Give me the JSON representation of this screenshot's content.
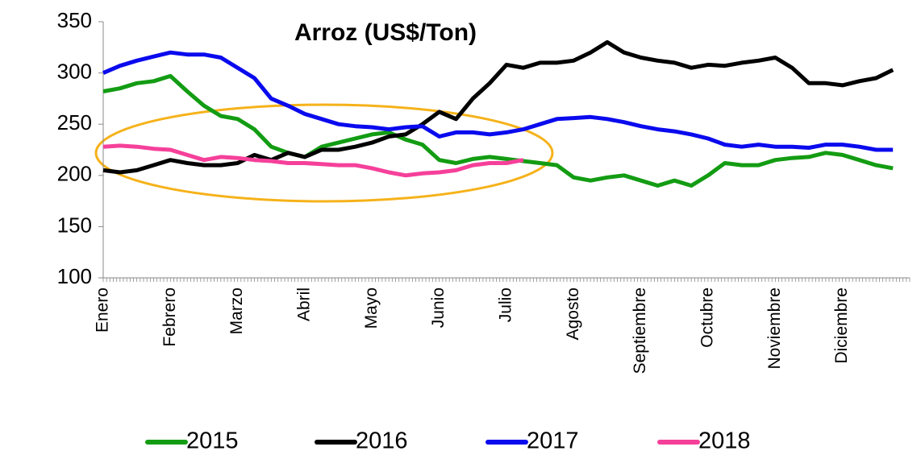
{
  "chart_data": {
    "type": "line",
    "title": "Arroz (US$/Ton)",
    "categories": [
      "Enero",
      null,
      null,
      null,
      "Febrero",
      null,
      null,
      null,
      "Marzo",
      null,
      null,
      null,
      "Abril",
      null,
      null,
      null,
      "Mayo",
      null,
      null,
      null,
      "Junio",
      null,
      null,
      null,
      "Julio",
      null,
      null,
      null,
      "Agosto",
      null,
      null,
      null,
      "Septiembre",
      null,
      null,
      null,
      "Octubre",
      null,
      null,
      null,
      "Noviembre",
      null,
      null,
      null,
      "Diciembre",
      null,
      null,
      null
    ],
    "series": [
      {
        "name": "2015",
        "color": "#139c13",
        "values": [
          282,
          285,
          290,
          292,
          297,
          282,
          268,
          258,
          255,
          245,
          228,
          222,
          218,
          228,
          232,
          236,
          240,
          242,
          235,
          230,
          215,
          212,
          216,
          218,
          216,
          214,
          212,
          210,
          198,
          195,
          198,
          200,
          195,
          190,
          195,
          190,
          200,
          212,
          210,
          210,
          215,
          217,
          218,
          222,
          220,
          215,
          210,
          207
        ]
      },
      {
        "name": "2016",
        "color": "#000000",
        "values": [
          205,
          203,
          205,
          210,
          215,
          212,
          210,
          210,
          212,
          220,
          215,
          222,
          218,
          225,
          225,
          228,
          232,
          238,
          240,
          250,
          262,
          255,
          275,
          290,
          308,
          305,
          310,
          310,
          312,
          320,
          330,
          320,
          315,
          312,
          310,
          305,
          308,
          307,
          310,
          312,
          315,
          305,
          290,
          290,
          288,
          292,
          295,
          303
        ]
      },
      {
        "name": "2017",
        "color": "#0a0aee",
        "values": [
          300,
          307,
          312,
          316,
          320,
          318,
          318,
          315,
          305,
          295,
          275,
          268,
          260,
          255,
          250,
          248,
          247,
          245,
          247,
          248,
          238,
          242,
          242,
          240,
          242,
          245,
          250,
          255,
          256,
          257,
          255,
          252,
          248,
          245,
          243,
          240,
          236,
          230,
          228,
          230,
          228,
          228,
          227,
          230,
          230,
          228,
          225,
          225
        ]
      },
      {
        "name": "2018",
        "color": "#f5409a",
        "values": [
          228,
          229,
          228,
          226,
          225,
          220,
          215,
          218,
          217,
          215,
          214,
          212,
          212,
          211,
          210,
          210,
          207,
          203,
          200,
          202,
          203,
          205,
          210,
          212,
          212,
          215,
          null,
          null,
          null,
          null,
          null,
          null,
          null,
          null,
          null,
          null,
          null,
          null,
          null,
          null,
          null,
          null,
          null,
          null,
          null,
          null,
          null,
          null
        ]
      }
    ],
    "ylim": [
      100,
      350
    ],
    "yticks": [
      100,
      150,
      200,
      250,
      300,
      350
    ],
    "legend": "bottom"
  }
}
